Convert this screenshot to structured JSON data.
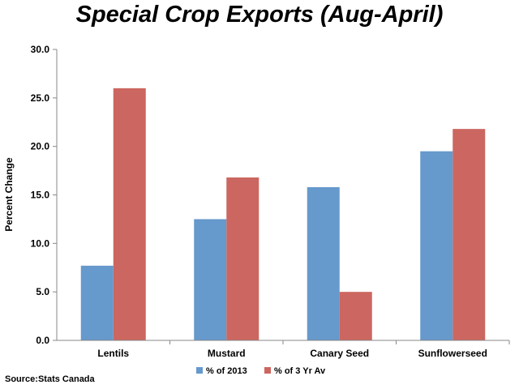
{
  "chart_data": {
    "type": "bar",
    "title": "Special Crop Exports (Aug-April)",
    "ylabel": "Percent Change",
    "xlabel": "",
    "categories": [
      "Lentils",
      "Mustard",
      "Canary Seed",
      "Sunflowerseed"
    ],
    "series": [
      {
        "name": "% of 2013",
        "color": "#6699cc",
        "values": [
          7.7,
          12.5,
          15.8,
          19.5
        ]
      },
      {
        "name": "% of 3 Yr Av",
        "color": "#cc6660",
        "values": [
          26.0,
          16.8,
          5.0,
          21.8
        ]
      }
    ],
    "ylim": [
      0,
      30
    ],
    "yticks": [
      "0.0",
      "5.0",
      "10.0",
      "15.0",
      "20.0",
      "25.0",
      "30.0"
    ],
    "grid": false,
    "legend_position": "bottom"
  },
  "source": "Source:Stats Canada"
}
